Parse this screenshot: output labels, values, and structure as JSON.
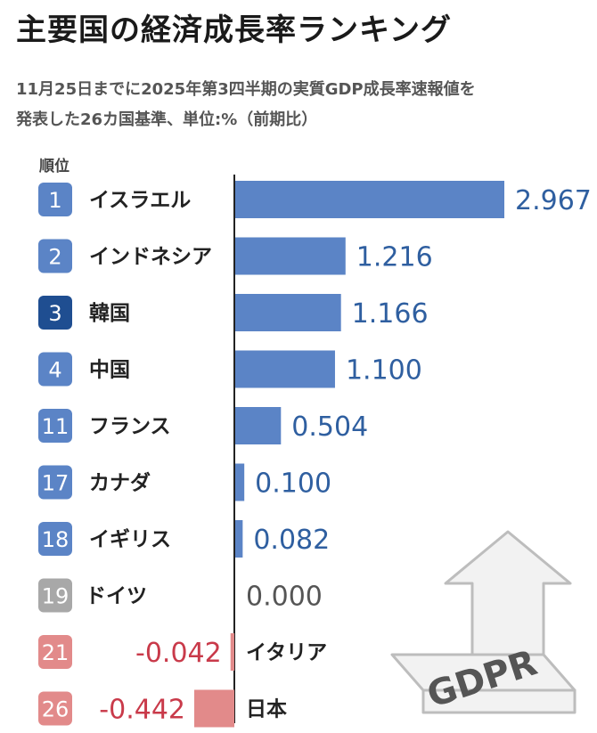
{
  "title": "主要国の経済成長率ランキング",
  "subtitle_line1": "11月25日までに2025年第3四半期の実質GDP成長率速報値を",
  "subtitle_line2": "発表した26カ国基準、単位:%（前期比）",
  "rank_header": "順位",
  "watermark_text": "GDPR",
  "colors": {
    "bar_positive": "#5b84c6",
    "bar_negative": "#e28a8a",
    "badge_default": "#5b84c6",
    "badge_highlight": "#1f4e91",
    "badge_zero": "#a8a8a8",
    "badge_negative": "#e28a8a",
    "value_positive": "#2f5fa0",
    "value_negative": "#c93a4a",
    "value_zero": "#555555"
  },
  "chart_data": {
    "type": "bar",
    "orientation": "horizontal",
    "title": "主要国の経済成長率ランキング",
    "unit": "%",
    "zero_axis": true,
    "rows": [
      {
        "rank": "1",
        "country": "イスラエル",
        "value": 2.967,
        "label": "2.967",
        "highlight": false
      },
      {
        "rank": "2",
        "country": "インドネシア",
        "value": 1.216,
        "label": "1.216",
        "highlight": false
      },
      {
        "rank": "3",
        "country": "韓国",
        "value": 1.166,
        "label": "1.166",
        "highlight": true
      },
      {
        "rank": "4",
        "country": "中国",
        "value": 1.1,
        "label": "1.100",
        "highlight": false
      },
      {
        "rank": "11",
        "country": "フランス",
        "value": 0.504,
        "label": "0.504",
        "highlight": false
      },
      {
        "rank": "17",
        "country": "カナダ",
        "value": 0.1,
        "label": "0.100",
        "highlight": false
      },
      {
        "rank": "18",
        "country": "イギリス",
        "value": 0.082,
        "label": "0.082",
        "highlight": false
      },
      {
        "rank": "19",
        "country": "ドイツ",
        "value": 0.0,
        "label": "0.000",
        "highlight": false
      },
      {
        "rank": "21",
        "country": "イタリア",
        "value": -0.042,
        "label": "-0.042",
        "highlight": false
      },
      {
        "rank": "26",
        "country": "日本",
        "value": -0.442,
        "label": "-0.442",
        "highlight": false
      }
    ]
  }
}
